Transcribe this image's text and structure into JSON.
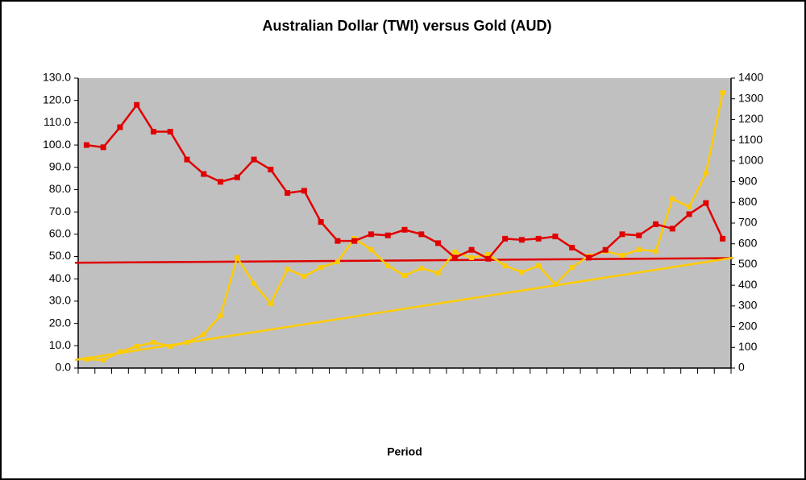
{
  "chart_data": {
    "type": "line",
    "title": "Australian Dollar (TWI) versus Gold (AUD)",
    "x_label": "Period",
    "categories": [
      null,
      null,
      null,
      null,
      null,
      null,
      null,
      null,
      null,
      null,
      null,
      null,
      null,
      null,
      null,
      null,
      null,
      null,
      null,
      null,
      null,
      null,
      null,
      null,
      null,
      null,
      null,
      null,
      null,
      null,
      null,
      null,
      null,
      null,
      null,
      null,
      null,
      null,
      null
    ],
    "ylim": [
      0,
      130
    ],
    "yticks": [
      {
        "value": 0,
        "label": "0.0"
      },
      {
        "value": 10,
        "label": "10.0"
      },
      {
        "value": 20,
        "label": "20.0"
      },
      {
        "value": 30,
        "label": "30.0"
      },
      {
        "value": 40,
        "label": "40.0"
      },
      {
        "value": 50,
        "label": "50.0"
      },
      {
        "value": 60,
        "label": "60.0"
      },
      {
        "value": 70,
        "label": "70.0"
      },
      {
        "value": 80,
        "label": "80.0"
      },
      {
        "value": 90,
        "label": "90.0"
      },
      {
        "value": 100,
        "label": "100.0"
      },
      {
        "value": 110,
        "label": "110.0"
      },
      {
        "value": 120,
        "label": "120.0"
      },
      {
        "value": 130,
        "label": "130.0"
      }
    ],
    "y2lim": [
      0,
      1400
    ],
    "y2ticks": [
      0,
      100,
      200,
      300,
      400,
      500,
      600,
      700,
      800,
      900,
      1000,
      1100,
      1200,
      1300,
      1400
    ],
    "grid": false,
    "series": [
      {
        "color": "#e00000",
        "axis": "y",
        "values": [
          100,
          99,
          108,
          118,
          106,
          106,
          93.5,
          87,
          83.5,
          85.5,
          93.5,
          89,
          78.5,
          79.5,
          65.5,
          57,
          57,
          60,
          59.5,
          62,
          60,
          56,
          49.5,
          53,
          49,
          58,
          57.5,
          58,
          59,
          54,
          49.5,
          53,
          60,
          59.5,
          64.5,
          62.5,
          69,
          74,
          58
        ]
      },
      {
        "color": "#ffcc00",
        "axis": "y2",
        "values": [
          43,
          39,
          78,
          105,
          124,
          105,
          124,
          163,
          253,
          533,
          408,
          311,
          478,
          443,
          486,
          513,
          626,
          572,
          494,
          447,
          482,
          459,
          560,
          533,
          548,
          494,
          463,
          494,
          404,
          486,
          541,
          564,
          544,
          572,
          564,
          817,
          778,
          941,
          1330
        ]
      }
    ],
    "trendlines": [
      {
        "color": "#e00000",
        "axis": "y",
        "values": [
          47.2,
          49.3
        ]
      },
      {
        "color": "#ffcc00",
        "axis": "y2",
        "values": [
          39,
          533
        ]
      }
    ]
  }
}
